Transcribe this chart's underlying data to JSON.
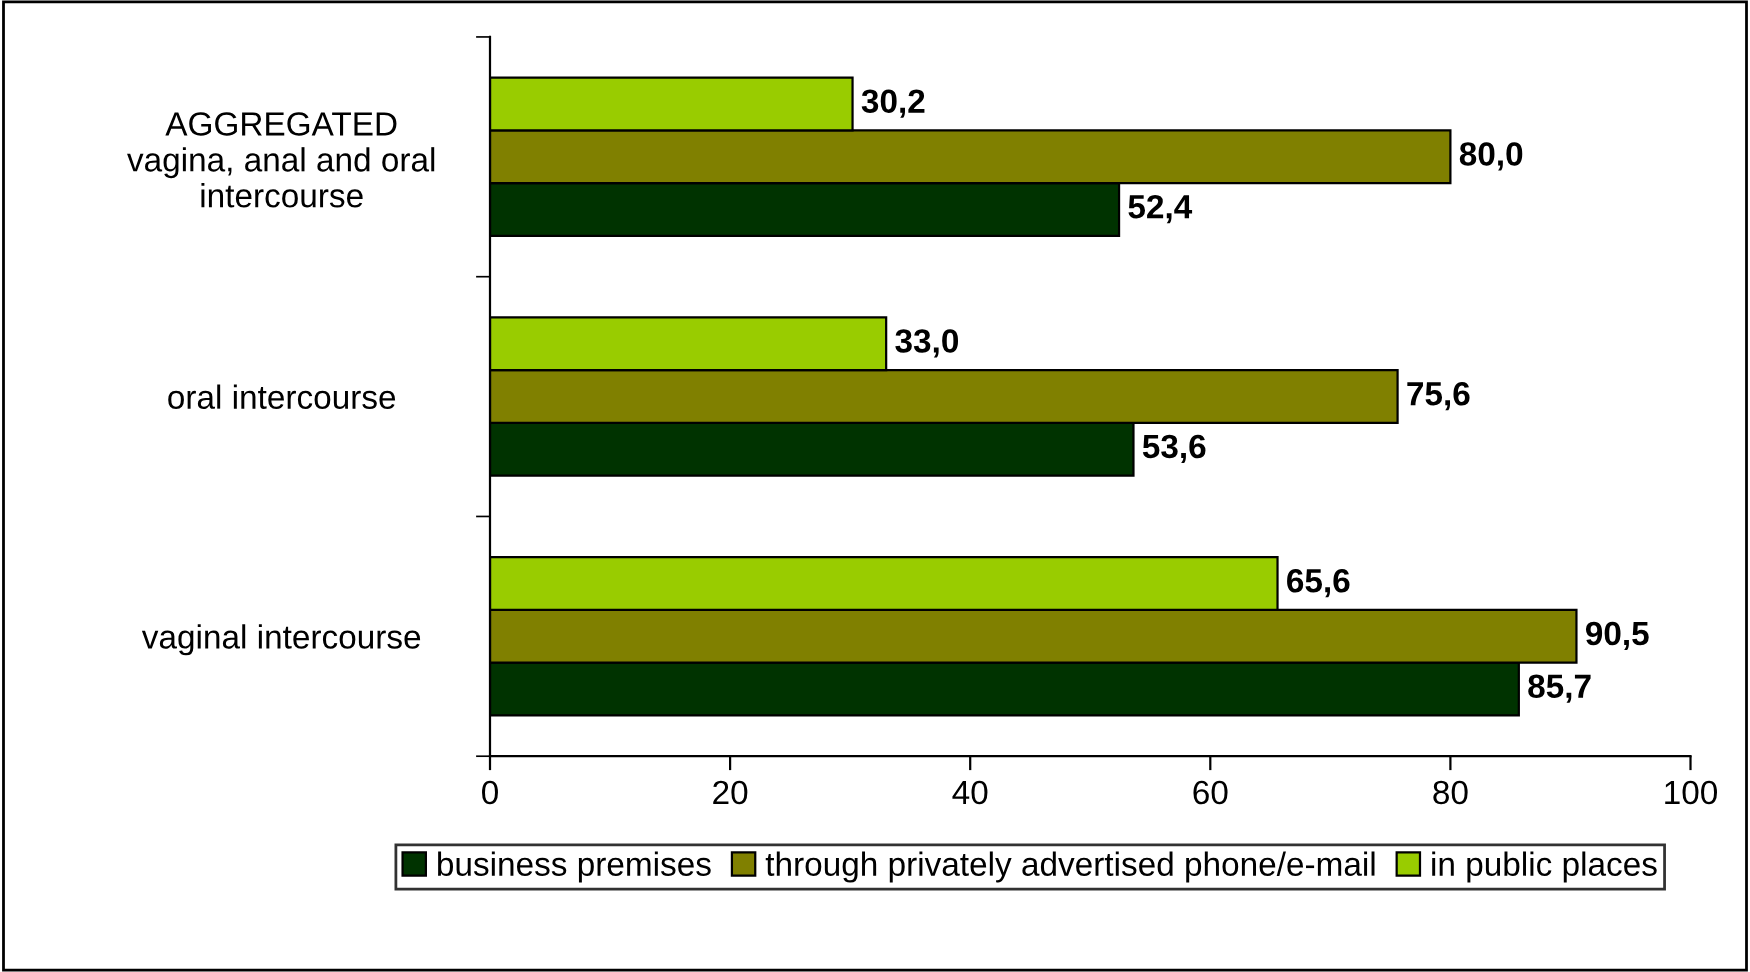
{
  "chart_data": {
    "type": "bar",
    "orientation": "horizontal",
    "categories": [
      "AGGREGATED\nvagina, anal and oral\nintercourse",
      "oral intercourse",
      "vaginal intercourse"
    ],
    "series": [
      {
        "name": "business premises",
        "color": "#003300",
        "values": [
          52.4,
          53.6,
          85.7
        ],
        "value_labels": [
          "52,4",
          "53,6",
          "85,7"
        ]
      },
      {
        "name": "through privately advertised phone/e-mail",
        "color": "#808000",
        "values": [
          80.0,
          75.6,
          90.5
        ],
        "value_labels": [
          "80,0",
          "75,6",
          "90,5"
        ]
      },
      {
        "name": "in public places",
        "color": "#99cc00",
        "values": [
          30.2,
          33.0,
          65.6
        ],
        "value_labels": [
          "30,2",
          "33,0",
          "65,6"
        ]
      }
    ],
    "xlim": [
      0,
      100
    ],
    "xticks": [
      0,
      20,
      40,
      60,
      80,
      100
    ],
    "grid": false,
    "legend": "bottom"
  }
}
